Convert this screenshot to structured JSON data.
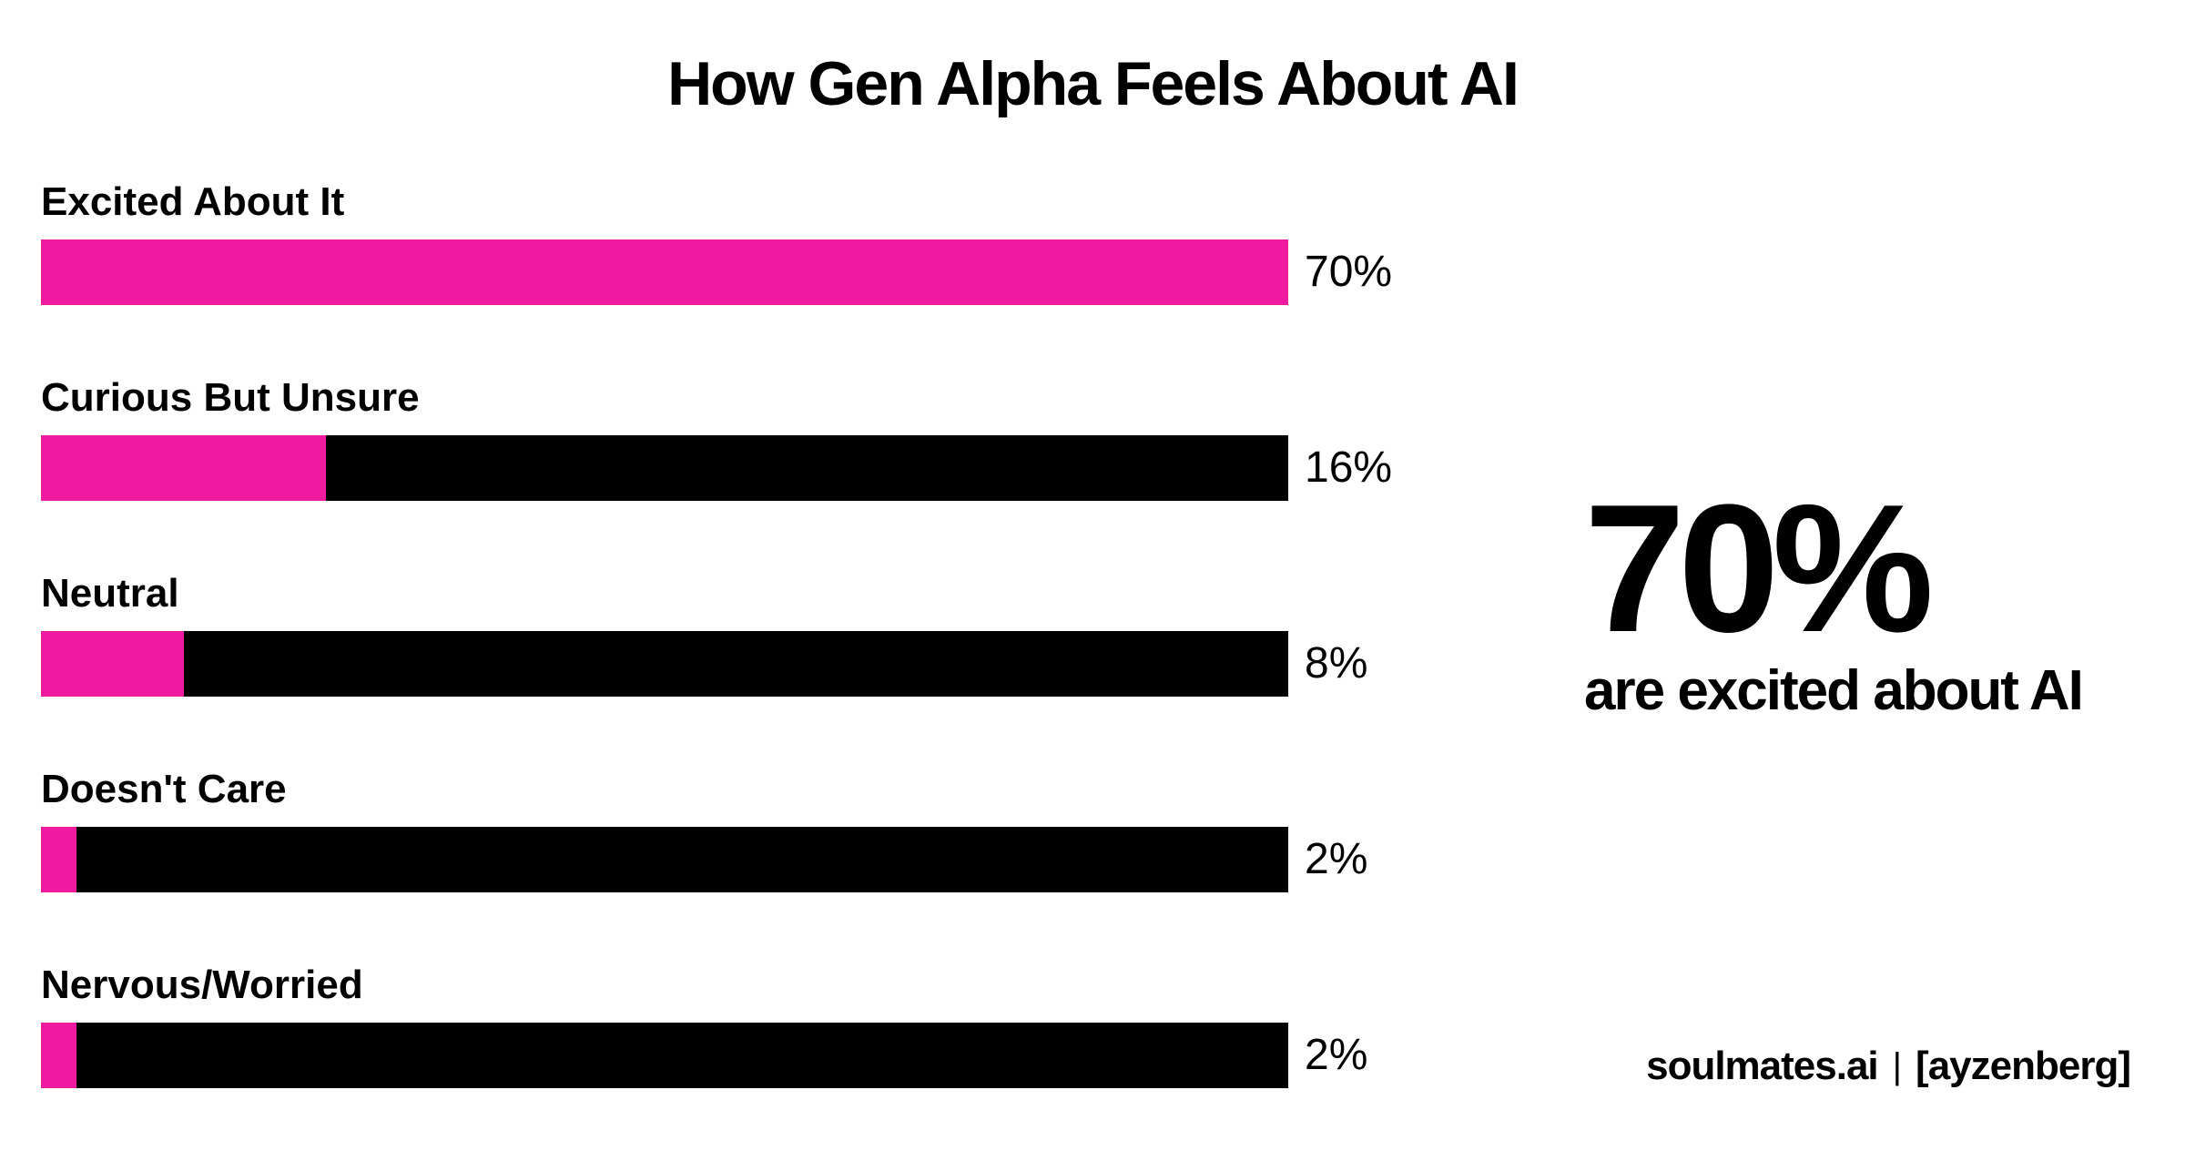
{
  "colors": {
    "accent": "#f01aa0",
    "track": "#000000",
    "background": "#ffffff"
  },
  "chart_data": {
    "type": "bar",
    "orientation": "horizontal",
    "title": "How Gen Alpha Feels About AI",
    "categories": [
      "Excited About It",
      "Curious But Unsure",
      "Neutral",
      "Doesn't Care",
      "Nervous/Worried"
    ],
    "values": [
      70,
      16,
      8,
      2,
      2
    ],
    "value_labels": [
      "70%",
      "16%",
      "8%",
      "2%",
      "2%"
    ],
    "xlim": [
      0,
      70
    ],
    "grid": false,
    "legend": "none"
  },
  "callout": {
    "value": "70%",
    "text": "are excited about AI"
  },
  "credit": {
    "left": "soulmates.ai",
    "separator": "|",
    "right": "[ayzenberg]"
  }
}
